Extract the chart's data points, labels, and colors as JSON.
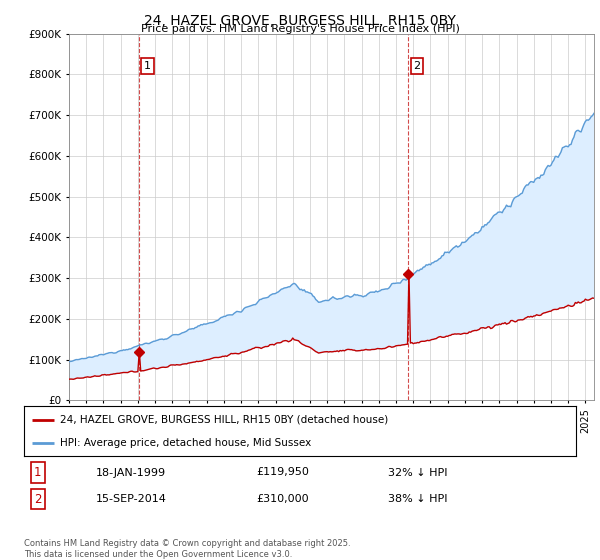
{
  "title": "24, HAZEL GROVE, BURGESS HILL, RH15 0BY",
  "subtitle": "Price paid vs. HM Land Registry's House Price Index (HPI)",
  "sale1_date": "18-JAN-1999",
  "sale1_price": 119950,
  "sale1_hpi": "32% ↓ HPI",
  "sale2_date": "15-SEP-2014",
  "sale2_price": 310000,
  "sale2_hpi": "38% ↓ HPI",
  "legend_line1": "24, HAZEL GROVE, BURGESS HILL, RH15 0BY (detached house)",
  "legend_line2": "HPI: Average price, detached house, Mid Sussex",
  "footer": "Contains HM Land Registry data © Crown copyright and database right 2025.\nThis data is licensed under the Open Government Licence v3.0.",
  "hpi_color": "#5b9bd5",
  "price_color": "#c00000",
  "vline_color": "#c00000",
  "fill_color": "#ddeeff",
  "background_color": "#ffffff",
  "ylim": [
    0,
    900000
  ],
  "xlim_start": 1995.0,
  "xlim_end": 2025.5,
  "sale1_x": 1999.05,
  "sale2_x": 2014.71
}
